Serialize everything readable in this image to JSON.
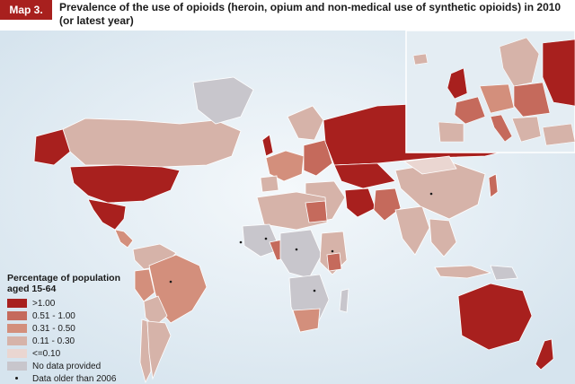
{
  "header": {
    "map_tag": "Map 3.",
    "title": "Prevalence of the use of opioids (heroin, opium and non-medical use of synthetic opioids) in 2010 (or latest year)"
  },
  "legend": {
    "title": "Percentage of population aged 15-64",
    "items": [
      {
        "label": ">1.00",
        "color": "#a8201e"
      },
      {
        "label": "0.51 - 1.00",
        "color": "#c56a5c"
      },
      {
        "label": "0.31 - 0.50",
        "color": "#d38f7c"
      },
      {
        "label": "0.11 - 0.30",
        "color": "#d6b3a9"
      },
      {
        "label": "<=0.10",
        "color": "#ead6d1"
      },
      {
        "label": "No data provided",
        "color": "#c8c6cc"
      }
    ],
    "dot_label": "Data older than 2006"
  },
  "colors": {
    "ocean": "#dfeaf2",
    "ocean_glow": "#f4f8fb",
    "border": "#ffffff"
  }
}
